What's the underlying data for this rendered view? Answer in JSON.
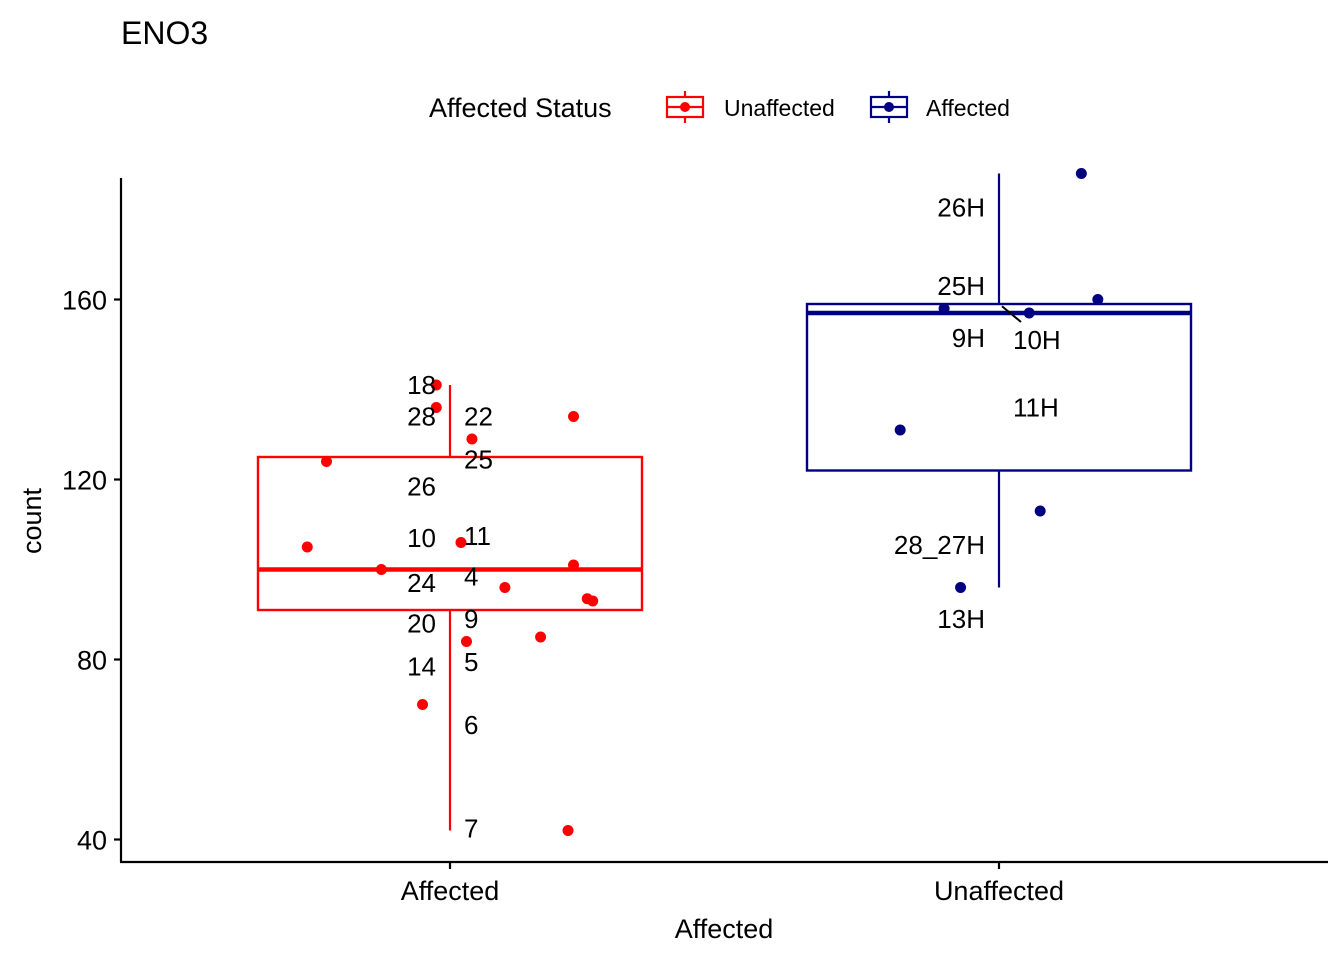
{
  "chart_data": {
    "type": "boxplot",
    "title": "ENO3",
    "xlabel": "Affected",
    "ylabel": "count",
    "categories": [
      "Affected",
      "Unaffected"
    ],
    "y_ticks": [
      "40",
      "80",
      "120",
      "160"
    ],
    "ylim": [
      35,
      187
    ],
    "legend": {
      "title": "Affected Status",
      "position": "top",
      "entries": [
        {
          "label": "Unaffected",
          "color": "#ff0000"
        },
        {
          "label": "Affected",
          "color": "#000080"
        }
      ]
    },
    "groups": [
      {
        "category": "Affected",
        "legend_entry": "Unaffected",
        "color": "#ff0000",
        "box": {
          "whisker_low": 42,
          "q1": 91,
          "median": 100,
          "q3": 125,
          "whisker_high": 141
        },
        "points": [
          {
            "id": "18",
            "jitter": -0.05,
            "y": 141
          },
          {
            "id": "28",
            "jitter": -0.05,
            "y": 136
          },
          {
            "id": "22",
            "jitter": 0.45,
            "y": 134
          },
          {
            "id": "25",
            "jitter": 0.08,
            "y": 129
          },
          {
            "id": "26",
            "jitter": -0.45,
            "y": 124
          },
          {
            "id": "10",
            "jitter": -0.52,
            "y": 105
          },
          {
            "id": "11",
            "jitter": 0.04,
            "y": 106
          },
          {
            "id": "4",
            "jitter": 0.45,
            "y": 101
          },
          {
            "id": "24",
            "jitter": -0.25,
            "y": 100
          },
          {
            "id": "9",
            "jitter": 0.2,
            "y": 96
          },
          {
            "id": "20",
            "jitter": 0.5,
            "y": 93.5
          },
          {
            "id": "19",
            "jitter": 0.52,
            "y": 93
          },
          {
            "id": "5",
            "jitter": 0.33,
            "y": 85
          },
          {
            "id": "14",
            "jitter": 0.06,
            "y": 84
          },
          {
            "id": "6",
            "jitter": -0.1,
            "y": 70
          },
          {
            "id": "7",
            "jitter": 0.43,
            "y": 42
          }
        ],
        "labels": [
          {
            "text": "18",
            "y": 141,
            "side": "left"
          },
          {
            "text": "22",
            "y": 134,
            "side": "right"
          },
          {
            "text": "28",
            "y": 134,
            "side": "left"
          },
          {
            "text": "25",
            "y": 124.5,
            "side": "right"
          },
          {
            "text": "26",
            "y": 118.5,
            "side": "left"
          },
          {
            "text": "11",
            "y": 107.5,
            "side": "right"
          },
          {
            "text": "10",
            "y": 107,
            "side": "left"
          },
          {
            "text": "4",
            "y": 98.5,
            "side": "right"
          },
          {
            "text": "24",
            "y": 97,
            "side": "left"
          },
          {
            "text": "9",
            "y": 89,
            "side": "right"
          },
          {
            "text": "20",
            "y": 88,
            "side": "left"
          },
          {
            "text": "5",
            "y": 79.5,
            "side": "right"
          },
          {
            "text": "14",
            "y": 78.5,
            "side": "left"
          },
          {
            "text": "6",
            "y": 65.5,
            "side": "right"
          },
          {
            "text": "7",
            "y": 42.5,
            "side": "right"
          }
        ]
      },
      {
        "category": "Unaffected",
        "legend_entry": "Affected",
        "color": "#000080",
        "box": {
          "whisker_low": 96,
          "q1": 122,
          "median": 157,
          "q3": 159,
          "whisker_high": 188
        },
        "points": [
          {
            "id": "26H",
            "jitter": 0.3,
            "y": 188
          },
          {
            "id": "25H",
            "jitter": 0.36,
            "y": 160
          },
          {
            "id": "9H",
            "jitter": -0.2,
            "y": 158
          },
          {
            "id": "10H",
            "jitter": 0.11,
            "y": 157
          },
          {
            "id": "11H",
            "jitter": -0.36,
            "y": 131
          },
          {
            "id": "28_27H",
            "jitter": 0.15,
            "y": 113
          },
          {
            "id": "13H",
            "jitter": -0.14,
            "y": 96
          }
        ],
        "labels": [
          {
            "text": "26H",
            "y": 180.5,
            "side": "left"
          },
          {
            "text": "25H",
            "y": 163,
            "side": "left"
          },
          {
            "text": "9H",
            "y": 151.5,
            "side": "left"
          },
          {
            "text": "10H",
            "y": 151,
            "side": "right"
          },
          {
            "text": "11H",
            "y": 136,
            "side": "right"
          },
          {
            "text": "28_27H",
            "y": 105.5,
            "side": "left"
          },
          {
            "text": "13H",
            "y": 89,
            "side": "left"
          }
        ]
      }
    ]
  }
}
